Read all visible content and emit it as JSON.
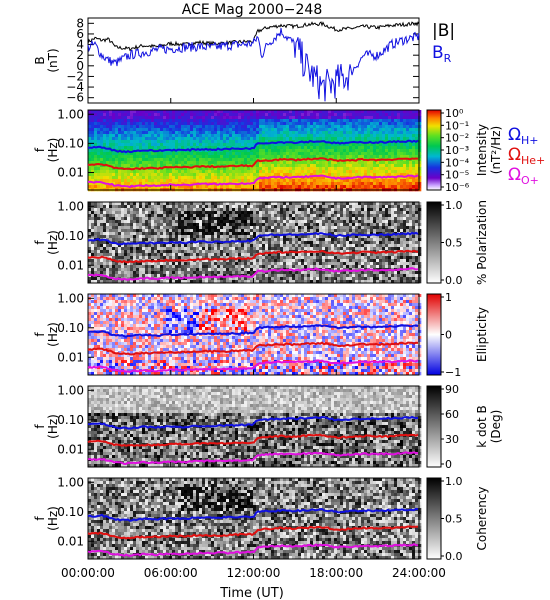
{
  "title": "ACE Mag 2000−248",
  "xlabel": "Time (UT)",
  "xticks": [
    "00:00:00",
    "06:00:00",
    "12:00:00",
    "18:00:00",
    "24:00:00"
  ],
  "freq_ticks": [
    "1.00",
    "0.10",
    "0.01"
  ],
  "freq_axis_label": {
    "line1": "f",
    "line2": "(Hz)"
  },
  "gyro_legend": [
    {
      "name": "Ω",
      "sub": "H+",
      "color": "#1010e0"
    },
    {
      "name": "Ω",
      "sub": "He+",
      "color": "#e01010"
    },
    {
      "name": "Ω",
      "sub": "O+",
      "color": "#e010e0"
    }
  ],
  "colors": {
    "total_field": "#000000",
    "radial_field": "#1010e0",
    "h_gyro": "#1010e0",
    "he_gyro": "#e01010",
    "o_gyro": "#e010e0"
  },
  "chart_data": [
    {
      "type": "line",
      "panel": "magnetic-field",
      "ylabel": {
        "line1": "B",
        "line2": "(nT)"
      },
      "yticks": [
        "8",
        "6",
        "4",
        "2",
        "0",
        "−2",
        "−4",
        "−6"
      ],
      "ylim": [
        -7,
        9
      ],
      "xlim": [
        0,
        24
      ],
      "legend": [
        {
          "label": "|B|",
          "color": "#000000"
        },
        {
          "label": "B",
          "sub": "R",
          "color": "#1010e0"
        }
      ],
      "series": [
        {
          "name": "|B|",
          "x": [
            0,
            0.5,
            1,
            1.5,
            2,
            3,
            4,
            5,
            6,
            7,
            8,
            9,
            10,
            11,
            12,
            12.3,
            12.6,
            13,
            14,
            15,
            16,
            17,
            18,
            19,
            20,
            21,
            22,
            23,
            24
          ],
          "values": [
            4.5,
            5.2,
            4.8,
            5.0,
            3.5,
            3.2,
            3.8,
            3.6,
            4.2,
            4.0,
            4.4,
            4.2,
            4.3,
            4.5,
            4.6,
            6.5,
            6.8,
            7.2,
            7.6,
            7.4,
            7.8,
            7.9,
            6.8,
            7.0,
            7.4,
            7.2,
            7.6,
            7.8,
            8.0
          ]
        },
        {
          "name": "B",
          "x": [
            0,
            0.5,
            1,
            1.5,
            2,
            3,
            4,
            5,
            6,
            7,
            8,
            9,
            10,
            11,
            12,
            12.3,
            12.6,
            13,
            14,
            15,
            16,
            17,
            18,
            19,
            20,
            21,
            22,
            23,
            24
          ],
          "values": [
            3.5,
            4.0,
            2.0,
            1.0,
            0.5,
            2.0,
            2.5,
            3.0,
            3.2,
            3.5,
            3.6,
            3.4,
            3.8,
            4.0,
            4.2,
            5.5,
            2.0,
            4.0,
            6.5,
            4.0,
            -1.0,
            -4.0,
            -3.0,
            -1.5,
            2.0,
            2.0,
            4.0,
            5.0,
            5.5
          ]
        }
      ]
    },
    {
      "type": "heatmap",
      "panel": "intensity",
      "colorbar_label": {
        "line1": "Intensity",
        "line2": "(nT²/Hz)"
      },
      "colorbar_ticks": [
        "10⁰",
        "10⁻¹",
        "10⁻²",
        "10⁻³",
        "10⁻⁴",
        "10⁻⁵",
        "10⁻⁶"
      ]
    },
    {
      "type": "heatmap",
      "panel": "polarization",
      "colorbar_label": {
        "line1": "% Polarization",
        "line2": ""
      },
      "colorbar_ticks": [
        "1.0",
        "0.5",
        "0.0"
      ]
    },
    {
      "type": "heatmap",
      "panel": "ellipticity",
      "colorbar_label": {
        "line1": "Ellipticity",
        "line2": ""
      },
      "colorbar_ticks": [
        "1",
        "0",
        "−1"
      ]
    },
    {
      "type": "heatmap",
      "panel": "kdotb",
      "colorbar_label": {
        "line1": "k dot B",
        "line2": "(Deg)"
      },
      "colorbar_ticks": [
        "90",
        "60",
        "30",
        "0"
      ]
    },
    {
      "type": "heatmap",
      "panel": "coherency",
      "colorbar_label": {
        "line1": "Coherency",
        "line2": ""
      },
      "colorbar_ticks": [
        "1.0",
        "0.5",
        "0.0"
      ]
    }
  ],
  "gyrofrequency_lines": {
    "x": [
      0,
      1,
      2,
      3,
      4,
      5,
      6,
      7,
      8,
      9,
      10,
      11,
      12,
      12.3,
      13,
      14,
      15,
      16,
      17,
      18,
      19,
      20,
      21,
      22,
      23,
      24
    ],
    "h_plus_hz": [
      0.07,
      0.075,
      0.055,
      0.052,
      0.058,
      0.055,
      0.06,
      0.058,
      0.063,
      0.062,
      0.064,
      0.066,
      0.068,
      0.1,
      0.105,
      0.11,
      0.108,
      0.115,
      0.118,
      0.1,
      0.105,
      0.11,
      0.108,
      0.112,
      0.118,
      0.12
    ],
    "he_plus_hz": [
      0.018,
      0.019,
      0.014,
      0.013,
      0.014,
      0.014,
      0.015,
      0.015,
      0.016,
      0.016,
      0.016,
      0.017,
      0.017,
      0.025,
      0.026,
      0.028,
      0.027,
      0.029,
      0.03,
      0.025,
      0.026,
      0.028,
      0.027,
      0.028,
      0.03,
      0.03
    ],
    "o_plus_hz": [
      0.0045,
      0.0047,
      0.0035,
      0.0033,
      0.0036,
      0.0035,
      0.0038,
      0.0037,
      0.004,
      0.004,
      0.004,
      0.0042,
      0.0043,
      0.0063,
      0.0065,
      0.007,
      0.0068,
      0.0072,
      0.0075,
      0.0063,
      0.0065,
      0.007,
      0.0068,
      0.007,
      0.0075,
      0.0076
    ]
  }
}
